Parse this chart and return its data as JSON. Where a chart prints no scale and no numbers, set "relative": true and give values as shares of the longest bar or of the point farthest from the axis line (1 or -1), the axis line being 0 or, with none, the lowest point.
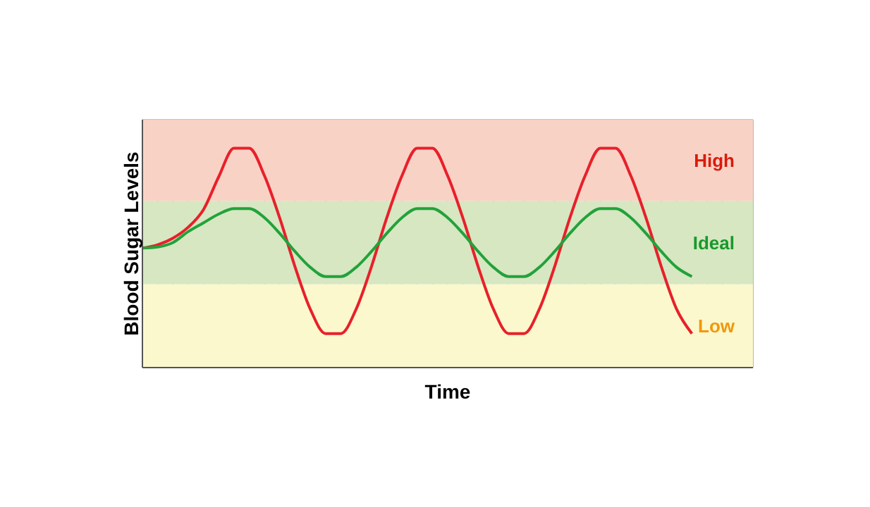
{
  "chart_data": {
    "type": "line",
    "xlabel": "Time",
    "ylabel": "Blood Sugar Levels",
    "relative": true,
    "grid": true,
    "marker": "none",
    "line_style": "solid",
    "legend": false,
    "categories": [
      null,
      null,
      null,
      null,
      null,
      null,
      null,
      null,
      null,
      null,
      null,
      null,
      null,
      null,
      null,
      null,
      null,
      null,
      null,
      null,
      null,
      null,
      null,
      null,
      null,
      null,
      null,
      null,
      null,
      null,
      null,
      null,
      null,
      null,
      null,
      null,
      null,
      null,
      null,
      null,
      null
    ],
    "series": [
      {
        "color": "#e8202a",
        "values": [
          0.545,
          0.56,
          0.59,
          0.64,
          0.72,
          0.87,
          1,
          1,
          0.874,
          0.681,
          0.459,
          0.266,
          0.155,
          0.155,
          0.266,
          0.459,
          0.681,
          0.874,
          1,
          1,
          0.874,
          0.681,
          0.459,
          0.266,
          0.155,
          0.155,
          0.266,
          0.459,
          0.681,
          0.874,
          1,
          1,
          0.874,
          0.681,
          0.459,
          0.266,
          0.155,
          null,
          null,
          null,
          null
        ]
      },
      {
        "color": "#22a23a",
        "values": [
          0.545,
          0.55,
          0.57,
          0.62,
          0.66,
          0.7,
          0.725,
          0.725,
          0.683,
          0.611,
          0.529,
          0.457,
          0.415,
          0.415,
          0.457,
          0.529,
          0.611,
          0.683,
          0.725,
          0.725,
          0.683,
          0.611,
          0.529,
          0.457,
          0.415,
          0.415,
          0.457,
          0.529,
          0.611,
          0.683,
          0.725,
          0.725,
          0.683,
          0.611,
          0.529,
          0.457,
          0.415,
          null,
          null,
          null,
          null
        ]
      }
    ],
    "bands": [
      {
        "axis": "y",
        "from": 0.76,
        "to": 1.13,
        "label": "High",
        "color": "#f9d2c6"
      },
      {
        "axis": "y",
        "from": 0.38,
        "to": 0.76,
        "label": "Ideal",
        "color": "#d6e7c2"
      },
      {
        "axis": "y",
        "from": 0,
        "to": 0.38,
        "label": "Low",
        "color": "#fbf8cd"
      }
    ]
  }
}
